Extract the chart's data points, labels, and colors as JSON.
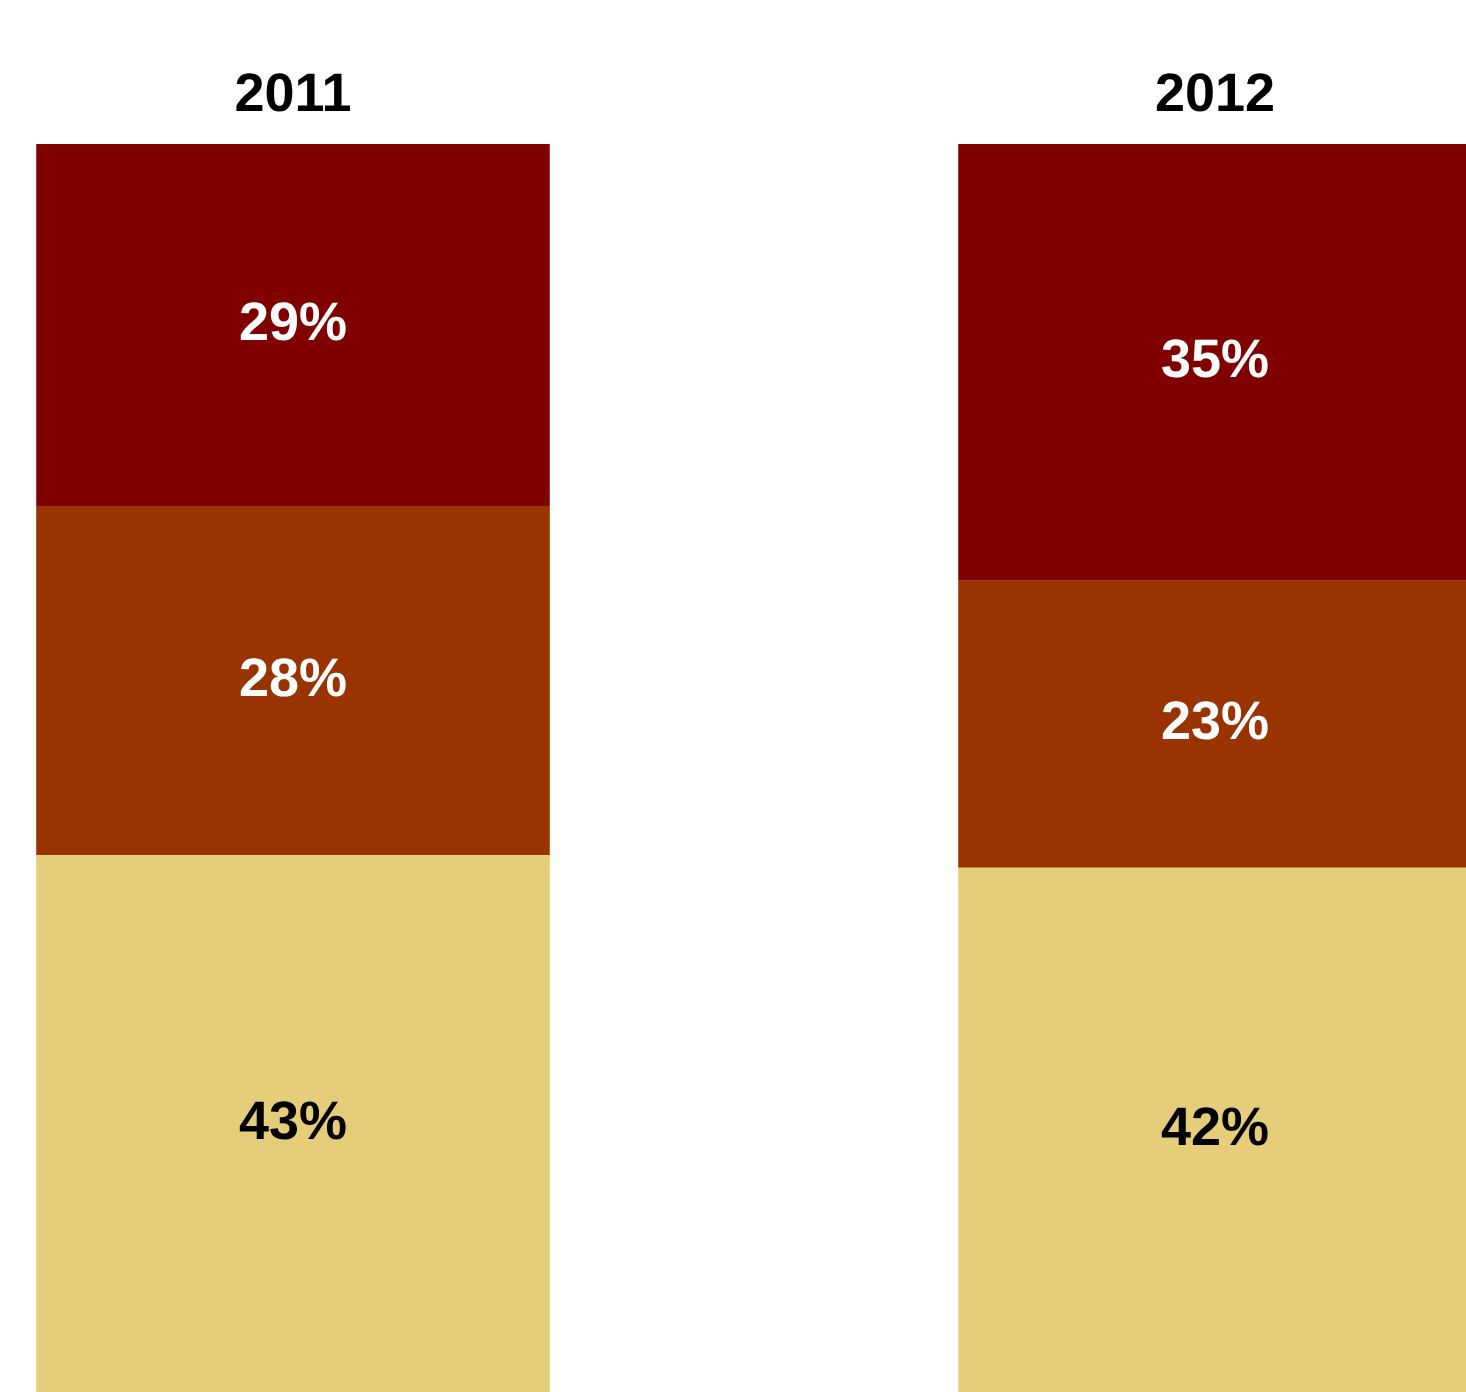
{
  "chart_data": {
    "type": "bar",
    "stacked": true,
    "categories": [
      "2011",
      "2012"
    ],
    "grid": false,
    "legend": false,
    "tick_labels": "x",
    "series": [
      {
        "color": "#e6cd7a",
        "values": [
          43,
          42
        ],
        "value_labels": [
          "43%",
          "42%"
        ]
      },
      {
        "color": "#993300",
        "values": [
          28,
          23
        ],
        "value_labels": [
          "28%",
          "23%"
        ]
      },
      {
        "color": "#800000",
        "values": [
          29,
          35
        ],
        "value_labels": [
          "29%",
          "35%"
        ]
      }
    ]
  }
}
